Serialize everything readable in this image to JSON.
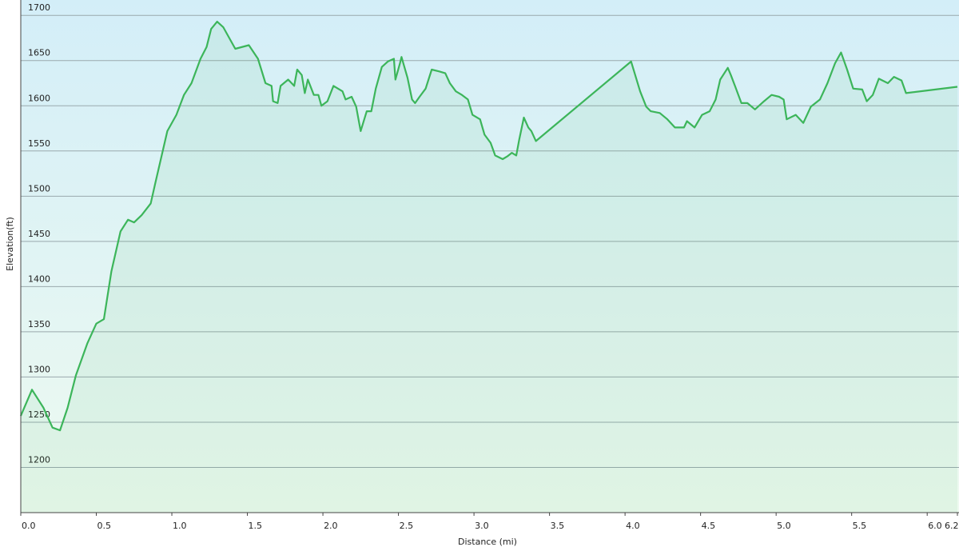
{
  "chart_data": {
    "type": "area",
    "x_label": "Distance  (mi)",
    "y_label": "Elevation(ft)",
    "color": "#3cb55a",
    "grid": true,
    "xlim": [
      0,
      6.2
    ],
    "ylim": [
      1150,
      1717
    ],
    "xticks": [
      {
        "value": 0,
        "label": "0.0"
      },
      0.5,
      {
        "value": 1,
        "label": "1.0"
      },
      1.5,
      {
        "value": 2,
        "label": "2.0"
      },
      2.5,
      {
        "value": 3,
        "label": "3.0"
      },
      3.5,
      {
        "value": 4,
        "label": "4.0"
      },
      4.5,
      {
        "value": 5,
        "label": "5.0"
      },
      5.5,
      {
        "value": 6,
        "label": "6.0"
      },
      6.2
    ],
    "yticks": [
      1200,
      1250,
      1300,
      1350,
      1400,
      1450,
      1500,
      1550,
      1600,
      1650,
      1700
    ],
    "x": [
      0,
      0.074,
      0.15,
      0.21,
      0.26,
      0.31,
      0.365,
      0.44,
      0.5,
      0.55,
      0.6,
      0.66,
      0.71,
      0.75,
      0.8,
      0.86,
      0.89,
      0.97,
      1.03,
      1.08,
      1.13,
      1.19,
      1.23,
      1.26,
      1.3,
      1.34,
      1.42,
      1.51,
      1.57,
      1.62,
      1.66,
      1.67,
      1.7,
      1.72,
      1.77,
      1.81,
      1.83,
      1.86,
      1.88,
      1.9,
      1.94,
      1.97,
      1.99,
      2.03,
      2.07,
      2.13,
      2.15,
      2.19,
      2.22,
      2.25,
      2.29,
      2.32,
      2.35,
      2.39,
      2.43,
      2.47,
      2.48,
      2.51,
      2.52,
      2.56,
      2.59,
      2.61,
      2.64,
      2.68,
      2.72,
      2.77,
      2.81,
      2.84,
      2.88,
      2.92,
      2.96,
      2.99,
      3.04,
      3.07,
      3.11,
      3.14,
      3.19,
      3.22,
      3.25,
      3.28,
      3.3,
      3.33,
      3.36,
      3.38,
      3.41,
      4.04,
      4.1,
      4.14,
      4.17,
      4.23,
      4.28,
      4.33,
      4.39,
      4.41,
      4.46,
      4.51,
      4.56,
      4.6,
      4.63,
      4.68,
      4.7,
      4.73,
      4.77,
      4.81,
      4.86,
      4.92,
      4.97,
      5.02,
      5.05,
      5.07,
      5.13,
      5.18,
      5.23,
      5.29,
      5.34,
      5.39,
      5.43,
      5.47,
      5.51,
      5.57,
      5.6,
      5.64,
      5.68,
      5.74,
      5.78,
      5.83,
      5.86,
      6.2
    ],
    "values": [
      1257,
      1286,
      1266,
      1244,
      1241,
      1266,
      1302,
      1337,
      1359,
      1364,
      1417,
      1461,
      1474,
      1471,
      1479,
      1492,
      1514,
      1572,
      1590,
      1612,
      1625,
      1652,
      1665,
      1685,
      1693,
      1687,
      1663,
      1667,
      1652,
      1625,
      1622,
      1605,
      1603,
      1622,
      1629,
      1622,
      1640,
      1634,
      1614,
      1629,
      1612,
      1612,
      1600,
      1605,
      1622,
      1616,
      1607,
      1610,
      1599,
      1572,
      1594,
      1594,
      1619,
      1643,
      1649,
      1652,
      1629,
      1647,
      1654,
      1631,
      1607,
      1603,
      1610,
      1619,
      1640,
      1638,
      1636,
      1625,
      1616,
      1612,
      1607,
      1590,
      1585,
      1568,
      1559,
      1545,
      1541,
      1544,
      1548,
      1545,
      1563,
      1587,
      1576,
      1572,
      1561,
      1649,
      1616,
      1599,
      1594,
      1592,
      1585,
      1576,
      1576,
      1583,
      1576,
      1590,
      1594,
      1607,
      1629,
      1642,
      1634,
      1621,
      1603,
      1603,
      1596,
      1605,
      1612,
      1610,
      1607,
      1585,
      1590,
      1581,
      1599,
      1607,
      1625,
      1647,
      1659,
      1640,
      1619,
      1618,
      1605,
      1612,
      1630,
      1625,
      1632,
      1628,
      1614,
      1621
    ]
  }
}
